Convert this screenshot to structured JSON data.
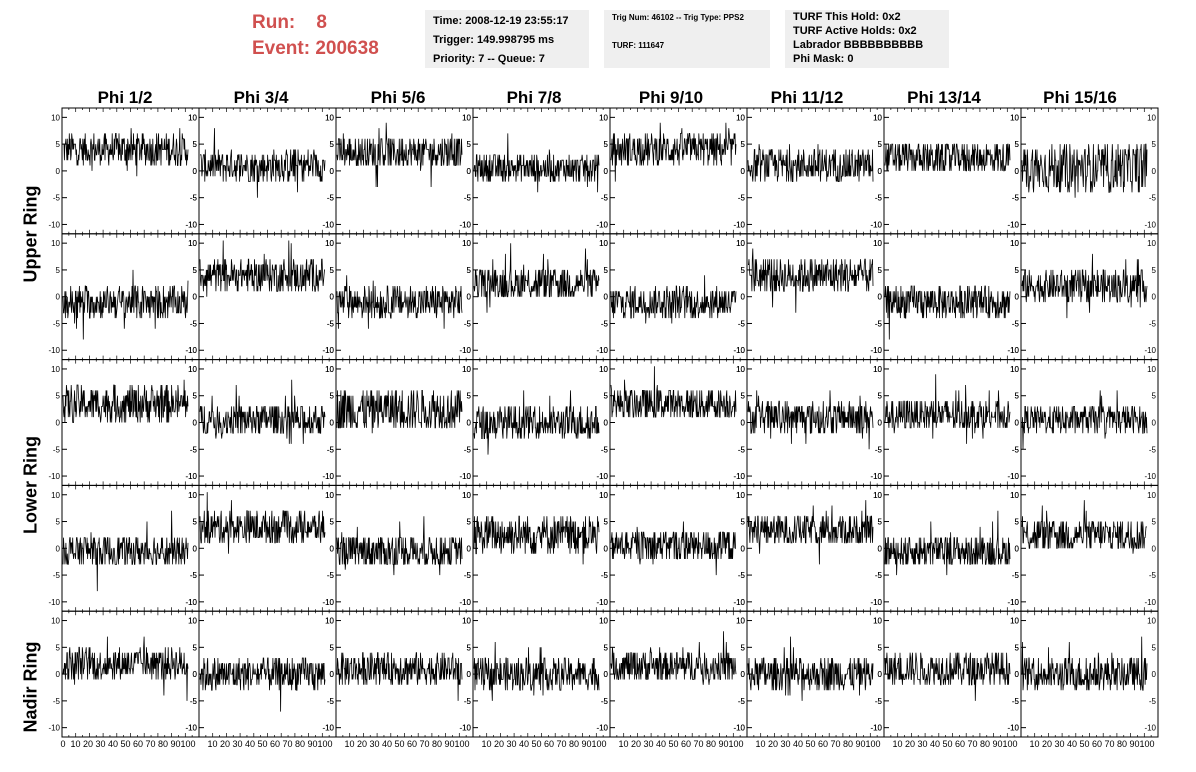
{
  "header": {
    "run_label": "Run:",
    "run_value": "8",
    "event_label": "Event:",
    "event_value": "200638"
  },
  "info_time": {
    "time": "Time: 2008-12-19 23:55:17",
    "trigger": "Trigger: 149.998795 ms",
    "priority": "Priority: 7 -- Queue: 7"
  },
  "info_trig": {
    "trig_line": "Trig Num: 46102 -- Trig Type: PPS2",
    "turf_line": "TURF: 111647"
  },
  "info_turf": {
    "hold": "TURF This Hold: 0x2",
    "active": "TURF Active Holds: 0x2",
    "labrador": "Labrador BBBBBBBBBB",
    "phimask": "Phi Mask: 0"
  },
  "columns": [
    "Phi 1/2",
    "Phi 3/4",
    "Phi 5/6",
    "Phi 7/8",
    "Phi 9/10",
    "Phi 11/12",
    "Phi 13/14",
    "Phi 15/16"
  ],
  "rings": [
    "Upper Ring",
    "Lower Ring",
    "Nadir Ring"
  ],
  "chart_data": {
    "type": "line",
    "xlim": [
      0,
      100
    ],
    "ylim": [
      -11,
      11
    ],
    "y_ticks": [
      -10,
      -5,
      0,
      5,
      10
    ],
    "x_ticks": [
      0,
      10,
      20,
      30,
      40,
      50,
      60,
      70,
      80,
      90,
      100
    ],
    "rows": 5,
    "cols": 8,
    "panel_baselines": [
      [
        4,
        1,
        3.5,
        0.5,
        4,
        1,
        2.5,
        0.5
      ],
      [
        -1,
        4,
        -1,
        2.5,
        -1,
        4,
        -1,
        2
      ],
      [
        3.5,
        0.5,
        2.5,
        0,
        3.5,
        1,
        1.5,
        0.5
      ],
      [
        -0.5,
        4,
        -0.5,
        2.5,
        0.5,
        3.5,
        -0.5,
        2.5
      ],
      [
        2,
        0,
        1,
        0,
        1.5,
        0,
        1,
        0
      ]
    ],
    "panel_spread": [
      [
        3,
        3,
        3,
        2.5,
        3,
        3,
        3,
        4.5
      ],
      [
        3,
        3,
        3,
        3,
        3,
        3.5,
        3,
        3
      ],
      [
        3.5,
        3,
        4,
        3,
        3,
        3,
        3,
        2.5
      ],
      [
        3,
        3,
        3,
        3.5,
        3,
        3,
        3,
        3
      ],
      [
        3,
        3,
        3,
        3,
        3,
        3,
        3,
        3
      ]
    ]
  }
}
